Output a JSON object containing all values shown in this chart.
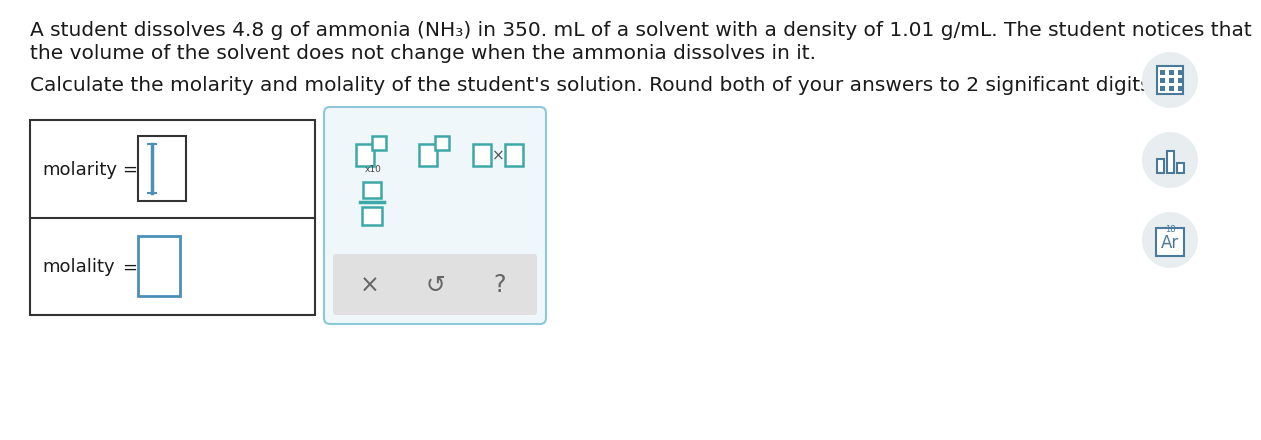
{
  "bg_color": "#ffffff",
  "text_color": "#1a1a1a",
  "line1": "A student dissolves 4.8 g of ammonia (NH₃) in 350. mL of a solvent with a density of 1.01 g/mL. The student notices that",
  "line2": "the volume of the solvent does not change when the ammonia dissolves in it.",
  "line3": "Calculate the molarity and molality of the student's solution. Round both of your answers to 2 significant digits.",
  "label_molarity": "molarity",
  "label_molality": "molality",
  "equals": "=",
  "input_border_color": "#333333",
  "blue_color": "#4a90b8",
  "teal_color": "#3da8a8",
  "toolbar_bg": "#f0f7fa",
  "toolbar_border": "#8cc8d8",
  "bottom_bar_color": "#e0e0e0",
  "symbol_color": "#666666",
  "icon_circle_bg": "#e8eef0",
  "icon_stroke": "#4a7a9b",
  "x10_label": "x10",
  "fig_width": 12.0,
  "fig_height": 4.21
}
